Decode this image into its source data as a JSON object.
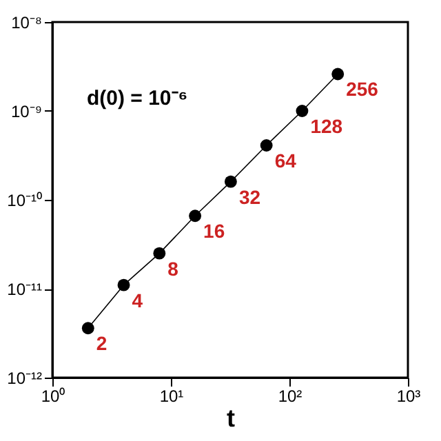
{
  "chart_data": {
    "type": "line",
    "xlabel": "t",
    "log": "xy",
    "marker": "circle",
    "line_style": "solid",
    "grid": false,
    "x": [
      2,
      4,
      8,
      16,
      32,
      64,
      128,
      256
    ],
    "series": [
      {
        "color": "#000000",
        "values": [
          3.6e-12,
          1.1e-11,
          2.5e-11,
          6.6e-11,
          1.6e-10,
          4.1e-10,
          1e-09,
          2.6e-09
        ]
      }
    ],
    "xlim": [
      1,
      1000
    ],
    "ylim": [
      1e-12,
      1e-08
    ],
    "xticks": [
      {
        "value": 1,
        "label": "10⁰"
      },
      {
        "value": 10,
        "label": "10¹"
      },
      {
        "value": 100,
        "label": "10²"
      },
      {
        "value": 1000,
        "label": "10³"
      }
    ],
    "yticks": [
      {
        "value": 1e-12,
        "label": "10⁻¹²"
      },
      {
        "value": 1e-11,
        "label": "10⁻¹¹"
      },
      {
        "value": 1e-10,
        "label": "10⁻¹⁰"
      },
      {
        "value": 1e-09,
        "label": "10⁻⁹"
      },
      {
        "value": 1e-08,
        "label": "10⁻⁸"
      }
    ],
    "annotations": [
      "d(0) = 10⁻⁶",
      {
        "text": "2",
        "x": 2,
        "y": 3.6e-12
      },
      {
        "text": "4",
        "x": 4,
        "y": 1.1e-11
      },
      {
        "text": "8",
        "x": 8,
        "y": 2.5e-11
      },
      {
        "text": "16",
        "x": 16,
        "y": 6.6e-11
      },
      {
        "text": "32",
        "x": 32,
        "y": 1.6e-10
      },
      {
        "text": "64",
        "x": 64,
        "y": 4.1e-10
      },
      {
        "text": "128",
        "x": 128,
        "y": 1e-09
      },
      {
        "text": "256",
        "x": 256,
        "y": 2.6e-09
      }
    ]
  }
}
